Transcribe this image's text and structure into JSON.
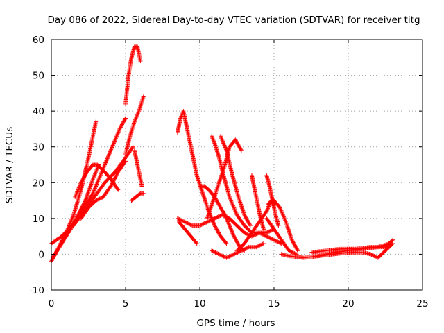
{
  "chart_data": {
    "type": "scatter",
    "title": "Day 086 of 2022, Sidereal Day-to-day VTEC variation (SDTVAR) for receiver titg",
    "xlabel": "GPS time / hours",
    "ylabel": "SDTVAR / TECUs",
    "xlim": [
      0,
      25
    ],
    "ylim": [
      -10,
      60
    ],
    "xticks": [
      0,
      5,
      10,
      15,
      20,
      25
    ],
    "yticks": [
      -10,
      0,
      10,
      20,
      30,
      40,
      50,
      60
    ],
    "grid": true,
    "marker": "+",
    "series_color": "#ff0000",
    "series": [
      {
        "name": "arc1",
        "x": [
          0.0,
          0.5,
          1.0,
          1.5,
          2.0,
          2.5,
          3.0
        ],
        "y": [
          -2,
          2,
          6,
          11,
          18,
          27,
          37
        ]
      },
      {
        "name": "arc2",
        "x": [
          0.0,
          0.7,
          1.4,
          2.1,
          2.8,
          3.4,
          4.0,
          4.6,
          5.0
        ],
        "y": [
          3,
          5,
          8,
          12,
          17,
          23,
          29,
          35,
          38
        ]
      },
      {
        "name": "arc3",
        "x": [
          0.1,
          0.7,
          1.3,
          1.8,
          2.3,
          2.8,
          3.2
        ],
        "y": [
          -1,
          3,
          7,
          11,
          15,
          21,
          25
        ]
      },
      {
        "name": "arc4",
        "x": [
          1.6,
          2.0,
          2.4,
          2.8,
          3.1,
          3.6,
          4.0,
          4.5
        ],
        "y": [
          16,
          20,
          23,
          25,
          25,
          23,
          21,
          18
        ]
      },
      {
        "name": "arc5",
        "x": [
          1.5,
          2.2,
          2.9,
          3.6,
          4.3,
          5.0,
          5.5
        ],
        "y": [
          8,
          12,
          16,
          20,
          23,
          27,
          30
        ]
      },
      {
        "name": "arc6",
        "x": [
          2.0,
          2.5,
          3.0,
          3.5,
          4.0,
          4.5,
          5.0
        ],
        "y": [
          10,
          13,
          15,
          16,
          19,
          23,
          26
        ]
      },
      {
        "name": "arc7",
        "x": [
          5.0,
          5.2,
          5.4,
          5.6,
          5.8,
          6.0
        ],
        "y": [
          42,
          50,
          55,
          58,
          58,
          54
        ]
      },
      {
        "name": "arc8",
        "x": [
          5.0,
          5.3,
          5.6,
          5.9,
          6.2
        ],
        "y": [
          28,
          33,
          37,
          40,
          44
        ]
      },
      {
        "name": "arc9",
        "x": [
          5.6,
          5.8,
          6.0,
          6.1
        ],
        "y": [
          29,
          25,
          21,
          19
        ]
      },
      {
        "name": "arc10",
        "x": [
          5.4,
          5.7,
          6.0,
          6.2
        ],
        "y": [
          15,
          16,
          17,
          17
        ]
      },
      {
        "name": "arc11",
        "x": [
          8.5,
          8.7,
          8.9,
          9.1,
          9.4,
          9.8,
          10.2,
          10.6,
          11.0,
          11.4,
          11.8
        ],
        "y": [
          34,
          38,
          40,
          36,
          30,
          22,
          17,
          12,
          8,
          5,
          3
        ]
      },
      {
        "name": "arc12",
        "x": [
          8.5,
          9.0,
          9.5,
          10.0,
          10.5,
          11.0,
          11.5,
          12.0,
          12.5,
          13.0,
          13.5,
          14.0,
          14.5,
          15.0
        ],
        "y": [
          10,
          9,
          8,
          8,
          9,
          10,
          11,
          10,
          8,
          6,
          5,
          6,
          6,
          7
        ]
      },
      {
        "name": "arc13",
        "x": [
          8.6,
          9.0,
          9.4,
          9.8
        ],
        "y": [
          9,
          7,
          5,
          3
        ]
      },
      {
        "name": "arc14",
        "x": [
          10.0,
          10.3,
          10.6,
          11.0,
          11.4,
          11.7,
          12.0,
          12.3,
          12.7,
          13.0
        ],
        "y": [
          19,
          19,
          18,
          16,
          13,
          11,
          8,
          5,
          2,
          1
        ]
      },
      {
        "name": "arc15",
        "x": [
          10.8,
          11.0,
          11.3,
          11.6,
          12.0,
          12.5,
          13.0,
          13.5,
          14.0,
          14.5,
          15.0,
          15.5
        ],
        "y": [
          33,
          31,
          27,
          22,
          16,
          11,
          8,
          6,
          6,
          5,
          4,
          3
        ]
      },
      {
        "name": "arc16",
        "x": [
          10.5,
          10.9,
          11.3,
          11.7,
          12.0,
          12.4,
          12.8
        ],
        "y": [
          10,
          15,
          20,
          25,
          30,
          32,
          29
        ]
      },
      {
        "name": "arc17",
        "x": [
          11.4,
          11.8,
          12.2,
          12.6,
          13.0,
          13.4
        ],
        "y": [
          33,
          29,
          22,
          16,
          11,
          8
        ]
      },
      {
        "name": "arc18",
        "x": [
          10.8,
          11.3,
          11.8,
          12.3,
          12.8,
          13.3,
          13.8,
          14.3
        ],
        "y": [
          1,
          0,
          -1,
          0,
          1,
          2,
          2,
          3
        ]
      },
      {
        "name": "arc19",
        "x": [
          12.5,
          13.0,
          13.5,
          14.0,
          14.5,
          14.8,
          15.0
        ],
        "y": [
          1,
          3,
          6,
          9,
          12,
          15,
          14
        ]
      },
      {
        "name": "arc20",
        "x": [
          13.5,
          13.7,
          13.9,
          14.1,
          14.3
        ],
        "y": [
          22,
          18,
          14,
          10,
          7
        ]
      },
      {
        "name": "arc21",
        "x": [
          14.5,
          14.7,
          14.9,
          15.1,
          15.3
        ],
        "y": [
          22,
          19,
          15,
          11,
          8
        ]
      },
      {
        "name": "arc22",
        "x": [
          14.6,
          15.0,
          15.4,
          15.8,
          16.2,
          16.6
        ],
        "y": [
          14,
          15,
          13,
          9,
          4,
          1
        ]
      },
      {
        "name": "arc23",
        "x": [
          14.5,
          15.0,
          15.5,
          16.0,
          16.5
        ],
        "y": [
          10,
          7,
          4,
          1,
          0
        ]
      },
      {
        "name": "arc24",
        "x": [
          15.5,
          16.0,
          17.0,
          18.0,
          19.0,
          20.0,
          21.0,
          21.5,
          22.0,
          22.5,
          23.0
        ],
        "y": [
          0,
          -0.5,
          -1,
          -0.5,
          0,
          0.5,
          0.5,
          0,
          -1,
          1,
          3
        ]
      },
      {
        "name": "arc25",
        "x": [
          17.5,
          18.5,
          19.5,
          20.5,
          21.5,
          22.5,
          23.0
        ],
        "y": [
          0.5,
          1,
          1.5,
          1.5,
          2,
          2,
          4
        ]
      },
      {
        "name": "arc26",
        "x": [
          18.0,
          19.0,
          20.0,
          21.0,
          22.0,
          22.8
        ],
        "y": [
          -0.5,
          0.5,
          1,
          1.5,
          2,
          3
        ]
      }
    ]
  }
}
